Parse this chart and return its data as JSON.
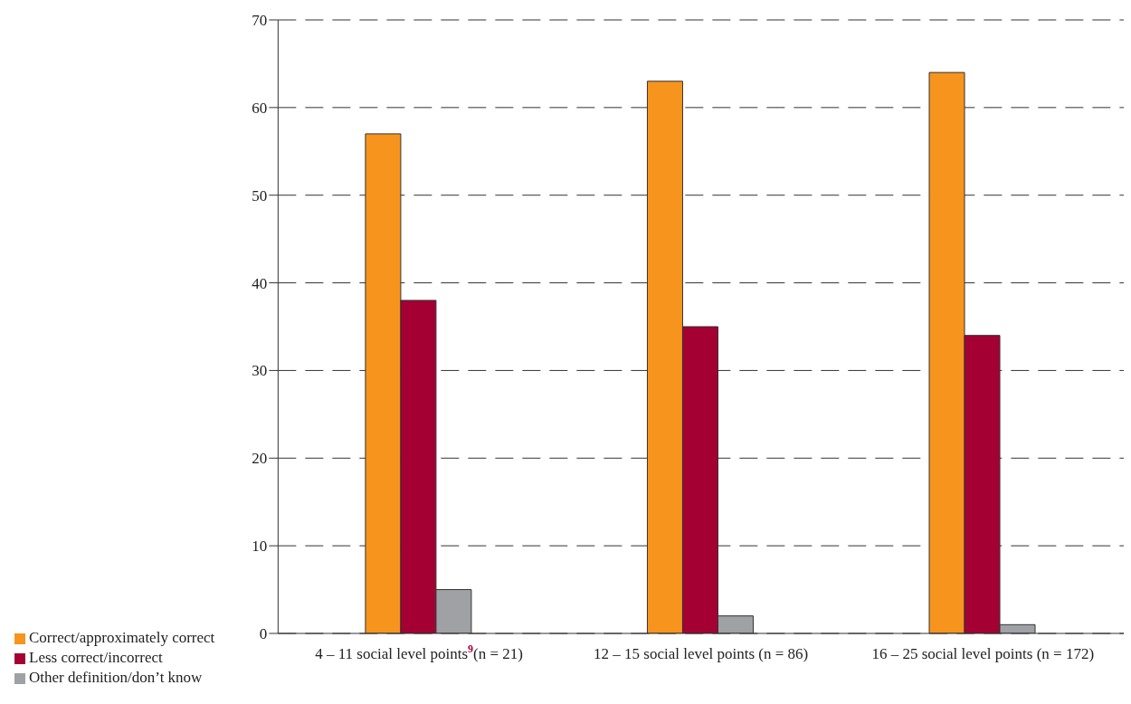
{
  "chart_data": {
    "type": "bar",
    "categories": [
      "4 – 11 social level points$^{9}$(n = 21)",
      "12 – 15 social level points (n = 86)",
      "16 – 25 social level points (n = 172)"
    ],
    "series": [
      {
        "name": "Correct/approximately correct",
        "color": "#f7941e",
        "values": [
          57,
          63,
          64
        ]
      },
      {
        "name": "Less correct/incorrect",
        "color": "#a50034",
        "values": [
          38,
          35,
          34
        ]
      },
      {
        "name": "Other definition/don’t know",
        "color": "#a0a1a5",
        "values": [
          5,
          2,
          1
        ]
      }
    ],
    "ylim": [
      0,
      70
    ],
    "yticks": [
      0,
      10,
      20,
      30,
      40,
      50,
      60,
      70
    ],
    "grid": "y",
    "legend": "bottom left"
  }
}
